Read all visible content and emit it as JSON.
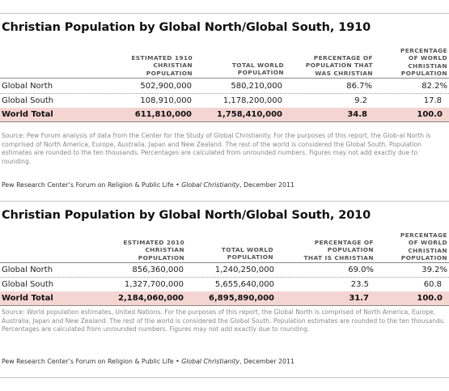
{
  "tables": [
    {
      "title": "Christian Population by Global North/Global South, 1910",
      "headers": [
        "ESTIMATED 1910\nCHRISTIAN\nPOPULATION",
        "TOTAL WORLD\nPOPULATION",
        "PERCENTAGE OF\nPOPULATION THAT\nWAS CHRISTIAN",
        "PERCENTAGE\nOF WORLD\nCHRISTIAN\nPOPULATION"
      ],
      "rows": [
        {
          "label": "Global North",
          "values": [
            "502,900,000",
            "580,210,000",
            "86.7%",
            "82.2%"
          ]
        },
        {
          "label": "Global South",
          "values": [
            "108,910,000",
            "1,178,200,000",
            "9.2",
            "17.8"
          ]
        },
        {
          "label": "World Total",
          "values": [
            "611,810,000",
            "1,758,410,000",
            "34.8",
            "100.0"
          ],
          "total": true
        }
      ],
      "source": "Source: Pew Forum analysis of data from the Center for the Study of Global Christianity. For the purposes of this report, the Glob-al North is comprised of North America, Europe, Australia, Japan and New Zealand. The rest of the world is considered the Global South. Population estimates are rounded to the ten thousands. Percentages are calculated from unrounded numbers. Figures may not add exactly due to rounding.",
      "credit_prefix": "Pew Research Center’s Forum on Religion & Public Life •",
      "credit_title": "Global Christianity",
      "credit_suffix": ", December 2011"
    },
    {
      "title": "Christian Population by Global North/Global South, 2010",
      "headers": [
        "ESTIMATED 2010\nCHRISTIAN\nPOPULATION",
        "TOTAL WORLD\nPOPULATION",
        "PERCENTAGE OF\nPOPULATION\nTHAT IS CHRISTIAN",
        "PERCENTAGE\nOF WORLD\nCHRISTIAN\nPOPULATION"
      ],
      "rows": [
        {
          "label": "Global North",
          "values": [
            "856,360,000",
            "1,240,250,000",
            "69.0%",
            "39.2%"
          ]
        },
        {
          "label": "Global South",
          "values": [
            "1,327,700,000",
            "5,655,640,000",
            "23.5",
            "60.8"
          ]
        },
        {
          "label": "World Total",
          "values": [
            "2,184,060,000",
            "6,895,890,000",
            "31.7",
            "100.0"
          ],
          "total": true
        }
      ],
      "source": "Source: World population estimates, United Nations. For the purposes of this report, the Global North is comprised of North America, Europe, Australia, Japan and New Zealand. The rest of the world is considered the Global South. Population estimates are rounded to the ten thousands. Percentages are calculated from unrounded numbers. Figures may not add exactly due to rounding.",
      "credit_prefix": "Pew Research Center’s Forum on Religion & Public Life •",
      "credit_title": "Global Christianity",
      "credit_suffix": ", December 2011"
    }
  ],
  "colors": {
    "total_row_bg": "#f4d5d2",
    "source_text": "#8a8a8a"
  }
}
